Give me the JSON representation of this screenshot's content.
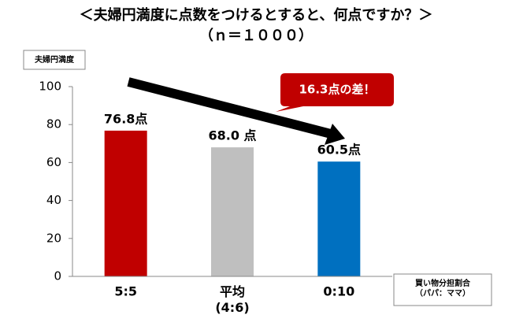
{
  "chart_data": {
    "type": "bar",
    "title": "＜夫婦円満度に点数をつけるとすると、何点ですか？＞",
    "subtitle": "（ｎ＝１０００）",
    "y_axis_label": "夫婦円満度",
    "x_axis_label": "買い物分担割合\n（パパ：ママ）",
    "annotation": "16.3点の差！",
    "categories": [
      "5:5",
      "平均\n(4:6)",
      "0:10"
    ],
    "values": [
      76.8,
      68.0,
      60.5
    ],
    "value_labels": [
      "76.8点",
      "68.0 点",
      "60.5点"
    ],
    "colors": [
      "#c00000",
      "#bfbfbf",
      "#0070c0"
    ],
    "ylim": [
      0,
      100
    ],
    "yticks": [
      0,
      20,
      40,
      60,
      80,
      100
    ],
    "grid": false
  }
}
